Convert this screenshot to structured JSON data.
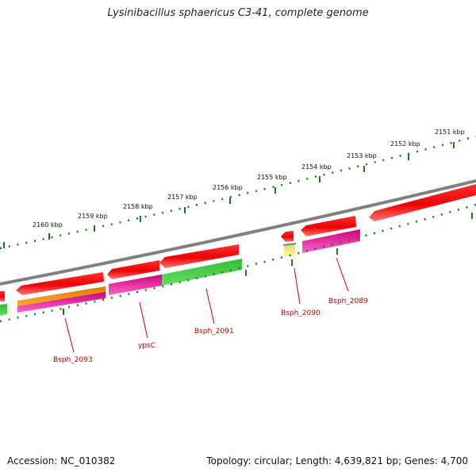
{
  "title": "Lysinibacillus sphaericus C3-41, complete genome",
  "footer": {
    "accession": "Accession: NC_010382",
    "summary": "Topology: circular; Length: 4,639,821 bp; Genes: 4,700"
  },
  "kbp_ticks": [
    "2151 kbp",
    "2152 kbp",
    "2153 kbp",
    "2154 kbp",
    "2155 kbp",
    "2156 kbp",
    "2157 kbp",
    "2158 kbp",
    "2159 kbp",
    "2160 kbp"
  ],
  "gene_labels": [
    "Bsph_2089",
    "Bsph_2090",
    "Bsph_2091",
    "ypsC",
    "Bsph_2093"
  ],
  "colors": {
    "backbone": "#808080",
    "cds": "#ff0000",
    "ring_green": "#33cc33",
    "ring_magenta": "#ee1199",
    "ring_orange": "#ee8800",
    "ring_yellow": "#eeee77",
    "tick": "#1a7a1a",
    "label": "#c00000"
  }
}
